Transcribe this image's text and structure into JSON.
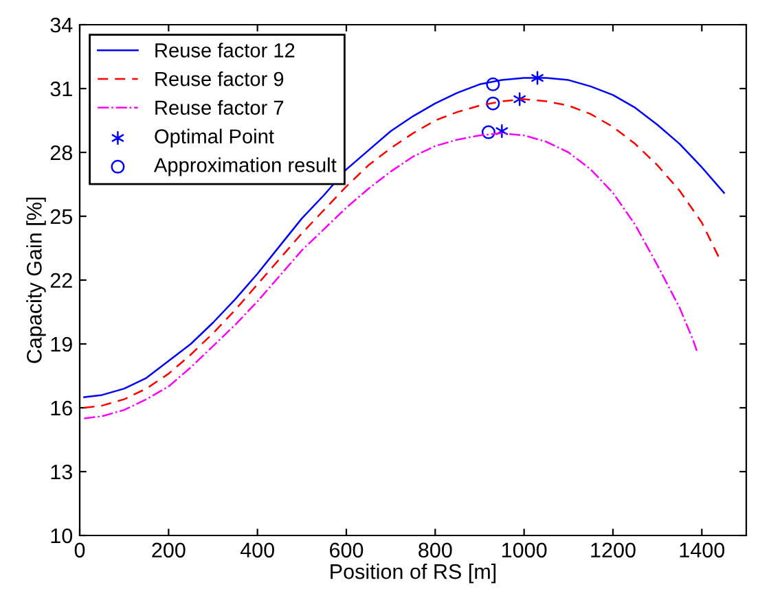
{
  "chart_data": {
    "type": "line",
    "xlabel": "Position of RS [m]",
    "ylabel": "Capacity Gain [%]",
    "xlim": [
      0,
      1500
    ],
    "xticks": [
      0,
      200,
      400,
      600,
      800,
      1000,
      1200,
      1400
    ],
    "ylim": [
      10,
      34
    ],
    "yticks": [
      10,
      13,
      16,
      19,
      22,
      25,
      28,
      31,
      34
    ],
    "grid": false,
    "legend": "top left",
    "series": [
      {
        "name": "Reuse factor 12",
        "color": "#0000ff",
        "line_style": "solid",
        "marker": "none",
        "x": [
          10,
          50,
          100,
          150,
          200,
          250,
          300,
          350,
          400,
          450,
          500,
          550,
          600,
          650,
          700,
          750,
          800,
          850,
          900,
          950,
          1000,
          1050,
          1100,
          1150,
          1200,
          1250,
          1300,
          1350,
          1400,
          1450
        ],
        "values": [
          16.5,
          16.6,
          16.9,
          17.4,
          18.2,
          19.0,
          20.0,
          21.1,
          22.3,
          23.6,
          24.9,
          26.0,
          27.2,
          28.1,
          29.0,
          29.7,
          30.3,
          30.8,
          31.2,
          31.4,
          31.5,
          31.5,
          31.4,
          31.1,
          30.7,
          30.1,
          29.3,
          28.4,
          27.3,
          26.1
        ]
      },
      {
        "name": "Reuse factor 9",
        "color": "#ff0000",
        "line_style": "dashed",
        "marker": "none",
        "x": [
          10,
          50,
          100,
          150,
          200,
          250,
          300,
          350,
          400,
          450,
          500,
          550,
          600,
          650,
          700,
          750,
          800,
          850,
          900,
          950,
          1000,
          1050,
          1100,
          1150,
          1200,
          1250,
          1300,
          1350,
          1400,
          1440
        ],
        "values": [
          16.0,
          16.1,
          16.4,
          16.9,
          17.6,
          18.5,
          19.5,
          20.6,
          21.8,
          23.0,
          24.2,
          25.3,
          26.4,
          27.4,
          28.2,
          28.9,
          29.5,
          29.9,
          30.2,
          30.4,
          30.5,
          30.4,
          30.2,
          29.8,
          29.2,
          28.4,
          27.4,
          26.2,
          24.7,
          23.0
        ]
      },
      {
        "name": "Reuse factor 7",
        "color": "#ff00ff",
        "line_style": "dashdot",
        "marker": "none",
        "x": [
          10,
          50,
          100,
          150,
          200,
          250,
          300,
          350,
          400,
          450,
          500,
          550,
          600,
          650,
          700,
          750,
          800,
          850,
          900,
          950,
          1000,
          1050,
          1100,
          1150,
          1200,
          1250,
          1300,
          1350,
          1380,
          1390
        ],
        "values": [
          15.5,
          15.6,
          15.9,
          16.4,
          17.0,
          17.9,
          18.9,
          19.9,
          21.0,
          22.2,
          23.4,
          24.4,
          25.4,
          26.3,
          27.1,
          27.8,
          28.3,
          28.6,
          28.8,
          28.9,
          28.8,
          28.5,
          28.0,
          27.2,
          26.1,
          24.6,
          22.7,
          20.7,
          19.2,
          18.6
        ]
      },
      {
        "name": "Optimal Point",
        "color": "#0000ff",
        "type": "scatter",
        "marker": "cross",
        "x": [
          1030,
          990,
          950
        ],
        "values": [
          31.5,
          30.5,
          29.0
        ]
      },
      {
        "name": "Approximation result",
        "color": "#0000ff",
        "type": "scatter",
        "marker": "circle",
        "x": [
          930,
          930,
          920
        ],
        "values": [
          31.2,
          30.3,
          28.95
        ]
      }
    ]
  }
}
